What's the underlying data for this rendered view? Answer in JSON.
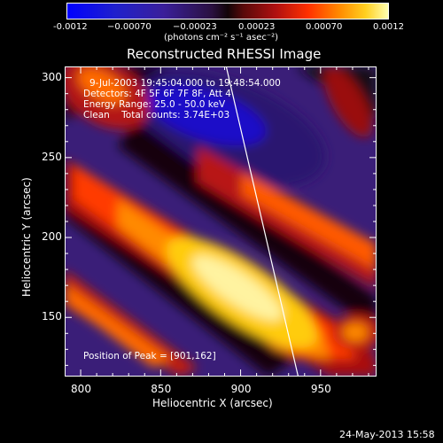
{
  "colorbar": {
    "ticks": [
      "-0.0012",
      "−0.00070",
      "−0.00023",
      "0.00023",
      "0.00070",
      "0.0012"
    ],
    "units": "(photons cm⁻² s⁻¹ asec⁻²)"
  },
  "title": "Reconstructed RHESSI Image",
  "annotations": {
    "time_range": "9-Jul-2003 19:45:04.000 to 19:48:54.000",
    "detectors": "Detectors: 4F 5F 6F 7F 8F, Att 4",
    "energy": "Energy Range: 25.0 - 50.0 keV",
    "method": "Clean    Total counts: 3.74E+03",
    "peak": "Position of Peak = [901,162]"
  },
  "footer_date": "24-May-2013 15:58",
  "chart_data": {
    "type": "heatmap",
    "title": "Reconstructed RHESSI Image",
    "xlabel": "Heliocentric X (arcsec)",
    "ylabel": "Heliocentric Y (arcsec)",
    "xlim": [
      790,
      985
    ],
    "ylim": [
      113,
      307
    ],
    "xticks": [
      800,
      850,
      900,
      950
    ],
    "yticks": [
      150,
      200,
      250,
      300
    ],
    "color_range": [
      -0.0012,
      0.0012
    ],
    "peak": [
      901,
      162
    ],
    "limb_line": [
      [
        891,
        307
      ],
      [
        936,
        113
      ]
    ]
  },
  "colors": {
    "background": "#000000",
    "axis": "#ffffff",
    "limb": "#ffffff"
  }
}
